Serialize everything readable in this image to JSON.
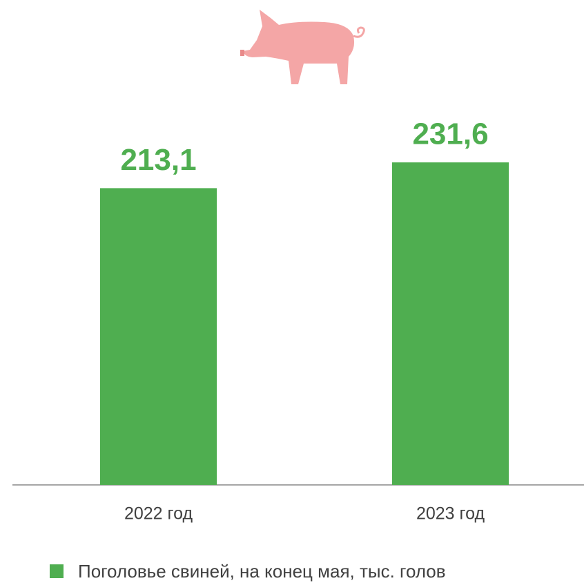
{
  "chart_data": {
    "type": "bar",
    "categories": [
      "2022 год",
      "2023 год"
    ],
    "series": [
      {
        "name": "Поголовье свиней, на конец мая, тыс. голов",
        "color": "#4fae50",
        "values": [
          213.1,
          231.6
        ],
        "value_labels": [
          "213,1",
          "231,6"
        ]
      }
    ],
    "ylim": [
      0,
      250
    ]
  }
}
